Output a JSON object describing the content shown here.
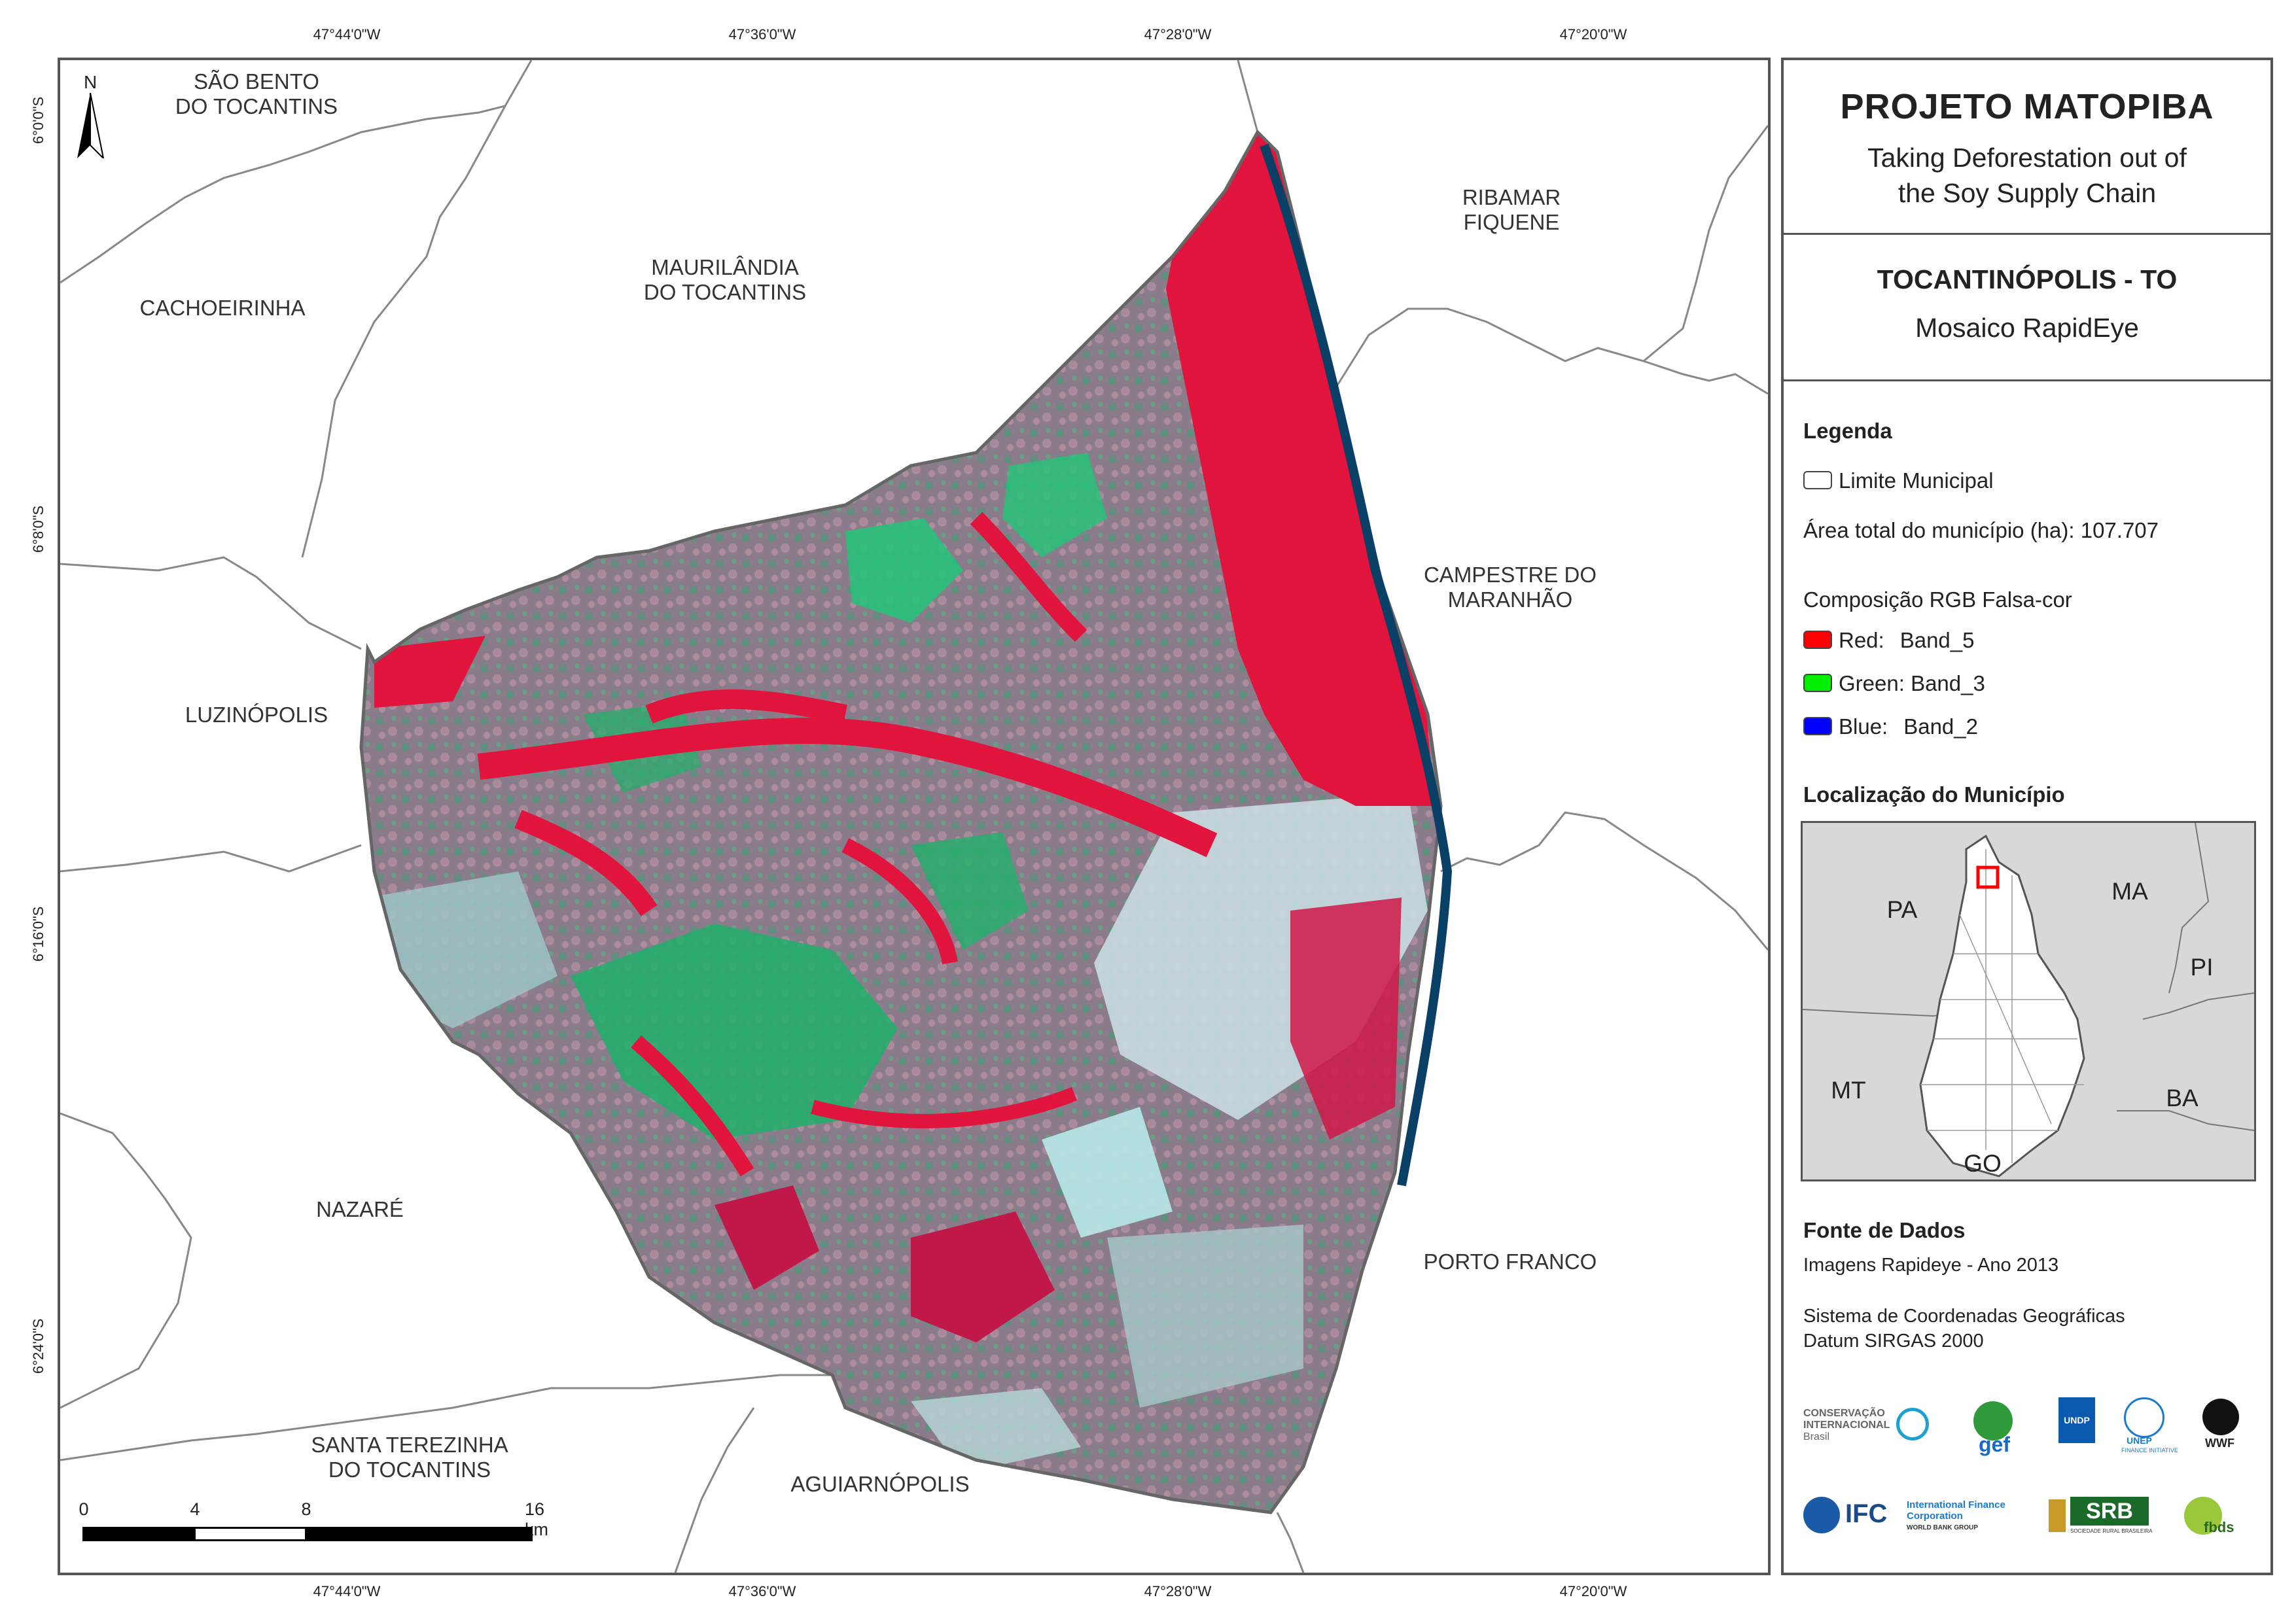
{
  "map": {
    "ticks_top": [
      "47°44'0\"W",
      "47°36'0\"W",
      "47°28'0\"W",
      "47°20'0\"W"
    ],
    "ticks_bottom": [
      "47°44'0\"W",
      "47°36'0\"W",
      "47°28'0\"W",
      "47°20'0\"W"
    ],
    "ticks_left": [
      "6°0'0\"S",
      "6°8'0\"S",
      "6°16'0\"S",
      "6°24'0\"S"
    ],
    "north_label": "N",
    "municipalities": [
      "SÃO BENTO\nDO TOCANTINS",
      "MAURILÂNDIA\nDO TOCANTINS",
      "RIBAMAR\nFIQUENE",
      "CACHOEIRINHA",
      "CAMPESTRE DO\nMARANHÃO",
      "LUZINÓPOLIS",
      "NAZARÉ",
      "PORTO FRANCO",
      "SANTA TEREZINHA\nDO TOCANTINS",
      "AGUIARNÓPOLIS"
    ],
    "scale": {
      "labels": [
        "0",
        "4",
        "8",
        "16 km"
      ]
    }
  },
  "panel": {
    "title": "PROJETO MATOPIBA",
    "subtitle": "Taking Deforestation out of\nthe Soy Supply Chain",
    "municipality_title": "TOCANTINÓPOLIS - TO",
    "mosaic_title": "Mosaico RapidEye",
    "legend": {
      "heading": "Legenda",
      "boundary_label": "Limite Municipal",
      "area_label": "Área total do município (ha): 107.707",
      "composition_heading": "Composição RGB Falsa-cor",
      "bands": [
        {
          "name": "Red:",
          "band": "Band_5",
          "color": "#ff0000"
        },
        {
          "name": "Green:",
          "band": "Band_3",
          "color": "#00ee00"
        },
        {
          "name": "Blue:",
          "band": "Band_2",
          "color": "#0000ff"
        }
      ]
    },
    "location": {
      "heading": "Localização do Município",
      "states": [
        "PA",
        "MA",
        "PI",
        "MT",
        "BA",
        "GO"
      ]
    },
    "sources": {
      "heading": "Fonte de Dados",
      "imagery": "Imagens Rapideye - Ano 2013",
      "crs_line1": "Sistema de Coordenadas Geográficas",
      "crs_line2": "Datum SIRGAS 2000"
    },
    "logos": {
      "ci": "CONSERVAÇÃO INTERNACIONAL",
      "ci_country": "Brasil",
      "gef": "gef",
      "undp": "UNDP",
      "unep": "UNEP",
      "unep_sub": "FINANCE INITIATIVE",
      "wwf": "WWF",
      "ifc": "IFC",
      "ifc_full": "International Finance Corporation",
      "ifc_group": "WORLD BANK GROUP",
      "srb": "SRB",
      "srb_full": "SOCIEDADE RURAL BRASILEIRA",
      "fbds": "fbds"
    }
  }
}
